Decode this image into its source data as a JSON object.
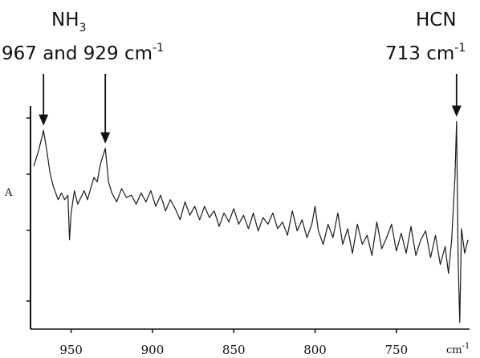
{
  "chart_data": {
    "type": "line",
    "title": "",
    "ylabel": "A",
    "xlabel": "cm-1",
    "xlim": [
      975,
      705
    ],
    "ylim": [
      0,
      1
    ],
    "x_reversed": true,
    "grid": false,
    "x_ticks": [
      950,
      900,
      850,
      800,
      750
    ],
    "x_tick_labels": [
      "950",
      "900",
      "850",
      "800",
      "750"
    ],
    "annotations": [
      {
        "species": "NH",
        "subscript": "3",
        "label": "967 and 929 cm",
        "superscript": "-1",
        "points_to": [
          967,
          929
        ]
      },
      {
        "species": "HCN",
        "subscript": "",
        "label": "713 cm",
        "superscript": "-1",
        "points_to": [
          713
        ]
      }
    ],
    "series": [
      {
        "color": "#1a1a1a",
        "x": [
          973,
          970,
          967,
          965,
          963,
          961,
          958,
          956,
          954,
          952,
          951,
          950,
          948,
          946,
          944,
          942,
          940,
          938,
          936,
          934,
          932,
          929,
          927,
          925,
          922,
          919,
          916,
          913,
          910,
          907,
          904,
          901,
          898,
          895,
          892,
          889,
          886,
          883,
          880,
          877,
          874,
          871,
          868,
          865,
          862,
          859,
          856,
          853,
          850,
          847,
          844,
          841,
          838,
          835,
          832,
          829,
          826,
          823,
          820,
          817,
          814,
          811,
          808,
          805,
          802,
          800,
          798,
          795,
          792,
          789,
          786,
          783,
          780,
          777,
          774,
          771,
          768,
          765,
          762,
          759,
          756,
          753,
          750,
          747,
          744,
          741,
          738,
          735,
          732,
          729,
          726,
          723,
          720,
          718,
          716,
          714,
          713,
          712,
          711,
          710,
          708,
          706
        ],
        "y": [
          0.73,
          0.8,
          0.89,
          0.8,
          0.7,
          0.64,
          0.58,
          0.61,
          0.58,
          0.6,
          0.4,
          0.52,
          0.62,
          0.56,
          0.59,
          0.62,
          0.58,
          0.63,
          0.68,
          0.66,
          0.74,
          0.81,
          0.66,
          0.61,
          0.57,
          0.63,
          0.59,
          0.6,
          0.56,
          0.61,
          0.57,
          0.62,
          0.55,
          0.6,
          0.53,
          0.58,
          0.54,
          0.49,
          0.57,
          0.51,
          0.55,
          0.49,
          0.55,
          0.5,
          0.53,
          0.46,
          0.52,
          0.48,
          0.54,
          0.47,
          0.51,
          0.45,
          0.52,
          0.44,
          0.5,
          0.47,
          0.52,
          0.45,
          0.48,
          0.42,
          0.53,
          0.44,
          0.49,
          0.41,
          0.47,
          0.55,
          0.44,
          0.38,
          0.47,
          0.41,
          0.52,
          0.38,
          0.45,
          0.34,
          0.47,
          0.38,
          0.42,
          0.33,
          0.48,
          0.36,
          0.41,
          0.47,
          0.35,
          0.43,
          0.34,
          0.46,
          0.33,
          0.4,
          0.44,
          0.32,
          0.42,
          0.29,
          0.37,
          0.25,
          0.4,
          0.68,
          0.93,
          0.3,
          0.03,
          0.45,
          0.34,
          0.4
        ]
      }
    ]
  }
}
